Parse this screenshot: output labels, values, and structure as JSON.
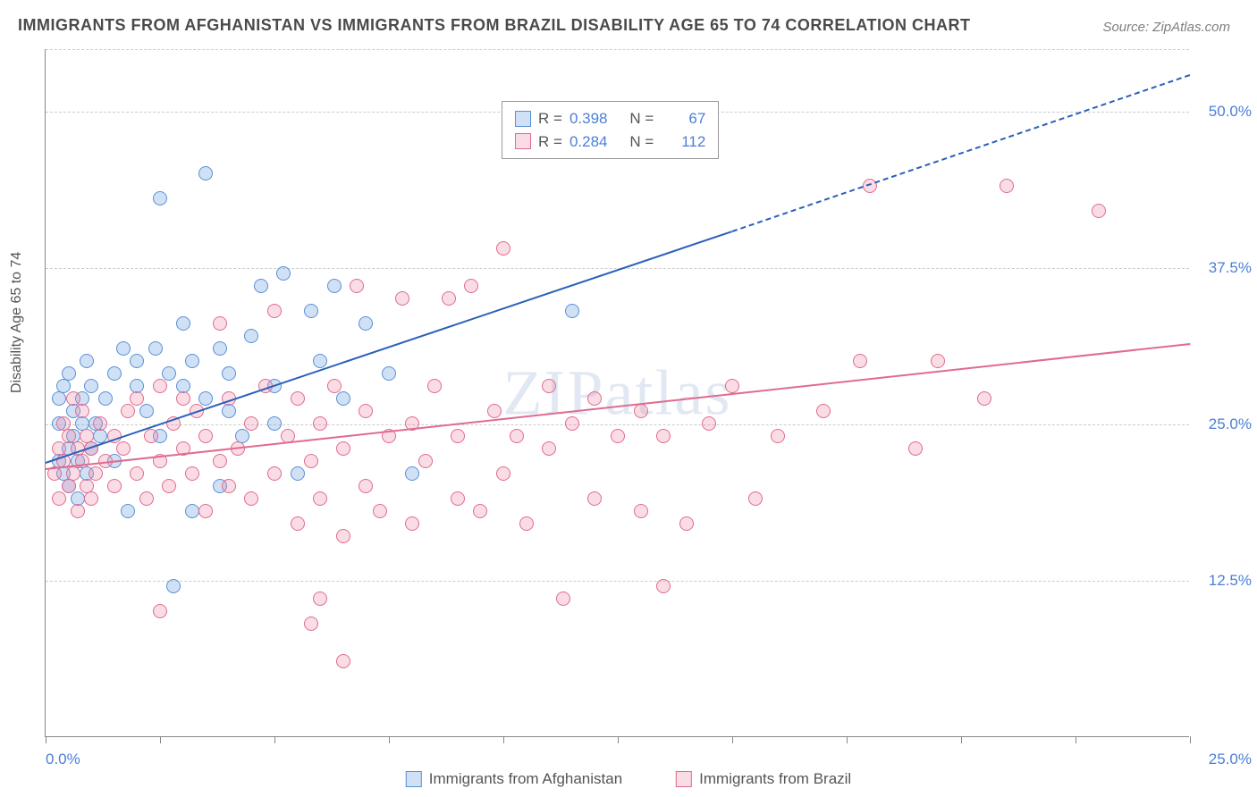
{
  "title": "IMMIGRANTS FROM AFGHANISTAN VS IMMIGRANTS FROM BRAZIL DISABILITY AGE 65 TO 74 CORRELATION CHART",
  "source": "Source: ZipAtlas.com",
  "ylabel": "Disability Age 65 to 74",
  "watermark": "ZIPatlas",
  "chart": {
    "type": "scatter",
    "xlim": [
      0,
      25
    ],
    "ylim": [
      0,
      55
    ],
    "x_ticks": [
      0,
      2.5,
      5,
      7.5,
      10,
      12.5,
      15,
      17.5,
      20,
      22.5,
      25
    ],
    "x_tick_labels_visible": {
      "0": "0.0%",
      "25": "25.0%"
    },
    "y_grid": [
      12.5,
      25,
      37.5,
      50
    ],
    "y_tick_labels": {
      "12.5": "12.5%",
      "25": "25.0%",
      "37.5": "37.5%",
      "50": "50.0%"
    },
    "background_color": "#ffffff",
    "grid_color": "#cccccc",
    "axis_color": "#888888",
    "marker_radius": 8,
    "marker_stroke_width": 1.5,
    "series": [
      {
        "name": "Immigrants from Afghanistan",
        "color_fill": "rgba(120,170,230,0.35)",
        "color_stroke": "#5a8fd6",
        "line_color": "#2a5fb8",
        "R": "0.398",
        "N": "67",
        "trend": {
          "x1": 0,
          "y1": 22,
          "x2_solid": 15,
          "y2_solid": 40.5,
          "x2_dash": 25,
          "y2_dash": 53
        },
        "points": [
          [
            0.3,
            22
          ],
          [
            0.3,
            25
          ],
          [
            0.3,
            27
          ],
          [
            0.4,
            21
          ],
          [
            0.4,
            28
          ],
          [
            0.5,
            20
          ],
          [
            0.5,
            23
          ],
          [
            0.5,
            29
          ],
          [
            0.6,
            24
          ],
          [
            0.6,
            26
          ],
          [
            0.7,
            19
          ],
          [
            0.7,
            22
          ],
          [
            0.8,
            25
          ],
          [
            0.8,
            27
          ],
          [
            0.9,
            21
          ],
          [
            0.9,
            30
          ],
          [
            1.0,
            23
          ],
          [
            1.0,
            28
          ],
          [
            1.1,
            25
          ],
          [
            1.2,
            24
          ],
          [
            1.3,
            27
          ],
          [
            1.5,
            22
          ],
          [
            1.5,
            29
          ],
          [
            1.7,
            31
          ],
          [
            1.8,
            18
          ],
          [
            2.0,
            28
          ],
          [
            2.0,
            30
          ],
          [
            2.2,
            26
          ],
          [
            2.4,
            31
          ],
          [
            2.5,
            24
          ],
          [
            2.7,
            29
          ],
          [
            2.8,
            12
          ],
          [
            3.0,
            28
          ],
          [
            3.0,
            33
          ],
          [
            3.2,
            18
          ],
          [
            3.2,
            30
          ],
          [
            3.5,
            27
          ],
          [
            3.5,
            45
          ],
          [
            3.8,
            20
          ],
          [
            3.8,
            31
          ],
          [
            4.0,
            26
          ],
          [
            4.0,
            29
          ],
          [
            4.3,
            24
          ],
          [
            4.5,
            32
          ],
          [
            4.7,
            36
          ],
          [
            5.0,
            25
          ],
          [
            5.0,
            28
          ],
          [
            5.2,
            37
          ],
          [
            5.5,
            21
          ],
          [
            5.8,
            34
          ],
          [
            6.0,
            30
          ],
          [
            6.3,
            36
          ],
          [
            6.5,
            27
          ],
          [
            7.0,
            33
          ],
          [
            7.5,
            29
          ],
          [
            8.0,
            21
          ],
          [
            11.5,
            34
          ],
          [
            2.5,
            43
          ]
        ]
      },
      {
        "name": "Immigrants from Brazil",
        "color_fill": "rgba(240,140,170,0.30)",
        "color_stroke": "#e06b8f",
        "line_color": "#e06b8f",
        "R": "0.284",
        "N": "112",
        "trend": {
          "x1": 0,
          "y1": 21.5,
          "x2_solid": 25,
          "y2_solid": 31.5
        },
        "points": [
          [
            0.2,
            21
          ],
          [
            0.3,
            19
          ],
          [
            0.3,
            23
          ],
          [
            0.4,
            22
          ],
          [
            0.4,
            25
          ],
          [
            0.5,
            20
          ],
          [
            0.5,
            24
          ],
          [
            0.6,
            21
          ],
          [
            0.6,
            27
          ],
          [
            0.7,
            18
          ],
          [
            0.7,
            23
          ],
          [
            0.8,
            22
          ],
          [
            0.8,
            26
          ],
          [
            0.9,
            20
          ],
          [
            0.9,
            24
          ],
          [
            1.0,
            19
          ],
          [
            1.0,
            23
          ],
          [
            1.1,
            21
          ],
          [
            1.2,
            25
          ],
          [
            1.3,
            22
          ],
          [
            1.5,
            20
          ],
          [
            1.5,
            24
          ],
          [
            1.7,
            23
          ],
          [
            1.8,
            26
          ],
          [
            2.0,
            21
          ],
          [
            2.0,
            27
          ],
          [
            2.2,
            19
          ],
          [
            2.3,
            24
          ],
          [
            2.5,
            22
          ],
          [
            2.5,
            28
          ],
          [
            2.7,
            20
          ],
          [
            2.8,
            25
          ],
          [
            3.0,
            23
          ],
          [
            3.0,
            27
          ],
          [
            3.2,
            21
          ],
          [
            3.3,
            26
          ],
          [
            3.5,
            18
          ],
          [
            3.5,
            24
          ],
          [
            3.8,
            22
          ],
          [
            3.8,
            33
          ],
          [
            4.0,
            20
          ],
          [
            4.0,
            27
          ],
          [
            4.2,
            23
          ],
          [
            4.5,
            19
          ],
          [
            4.5,
            25
          ],
          [
            4.8,
            28
          ],
          [
            5.0,
            21
          ],
          [
            5.0,
            34
          ],
          [
            5.3,
            24
          ],
          [
            5.5,
            17
          ],
          [
            5.5,
            27
          ],
          [
            5.8,
            22
          ],
          [
            6.0,
            19
          ],
          [
            6.0,
            25
          ],
          [
            6.3,
            28
          ],
          [
            6.5,
            16
          ],
          [
            6.5,
            23
          ],
          [
            6.8,
            36
          ],
          [
            7.0,
            20
          ],
          [
            7.0,
            26
          ],
          [
            7.3,
            18
          ],
          [
            7.5,
            24
          ],
          [
            7.8,
            35
          ],
          [
            8.0,
            17
          ],
          [
            8.0,
            25
          ],
          [
            8.3,
            22
          ],
          [
            8.5,
            28
          ],
          [
            8.8,
            35
          ],
          [
            9.0,
            19
          ],
          [
            9.0,
            24
          ],
          [
            9.3,
            36
          ],
          [
            9.5,
            18
          ],
          [
            9.8,
            26
          ],
          [
            10.0,
            21
          ],
          [
            10.0,
            39
          ],
          [
            10.3,
            24
          ],
          [
            10.5,
            17
          ],
          [
            11.0,
            23
          ],
          [
            11.0,
            28
          ],
          [
            11.3,
            11
          ],
          [
            11.5,
            25
          ],
          [
            12.0,
            19
          ],
          [
            12.0,
            27
          ],
          [
            12.5,
            24
          ],
          [
            13.0,
            18
          ],
          [
            13.0,
            26
          ],
          [
            13.5,
            12
          ],
          [
            13.5,
            24
          ],
          [
            14.0,
            17
          ],
          [
            14.5,
            25
          ],
          [
            15.0,
            28
          ],
          [
            15.5,
            19
          ],
          [
            16.0,
            24
          ],
          [
            17.0,
            26
          ],
          [
            17.8,
            30
          ],
          [
            18.0,
            44
          ],
          [
            19.0,
            23
          ],
          [
            19.5,
            30
          ],
          [
            20.5,
            27
          ],
          [
            21.0,
            44
          ],
          [
            23.0,
            42
          ],
          [
            6.0,
            11
          ],
          [
            6.5,
            6
          ],
          [
            5.8,
            9
          ],
          [
            2.5,
            10
          ]
        ]
      }
    ]
  },
  "legend_box": {
    "rows": [
      {
        "swatch_fill": "rgba(120,170,230,0.35)",
        "swatch_stroke": "#5a8fd6",
        "R_label": "R =",
        "R_val": "0.398",
        "N_label": "N =",
        "N_val": "67"
      },
      {
        "swatch_fill": "rgba(240,140,170,0.30)",
        "swatch_stroke": "#e06b8f",
        "R_label": "R =",
        "R_val": "0.284",
        "N_label": "N =",
        "N_val": "112"
      }
    ]
  },
  "bottom_legend": [
    {
      "swatch_fill": "rgba(120,170,230,0.35)",
      "swatch_stroke": "#5a8fd6",
      "label": "Immigrants from Afghanistan"
    },
    {
      "swatch_fill": "rgba(240,140,170,0.30)",
      "swatch_stroke": "#e06b8f",
      "label": "Immigrants from Brazil"
    }
  ]
}
